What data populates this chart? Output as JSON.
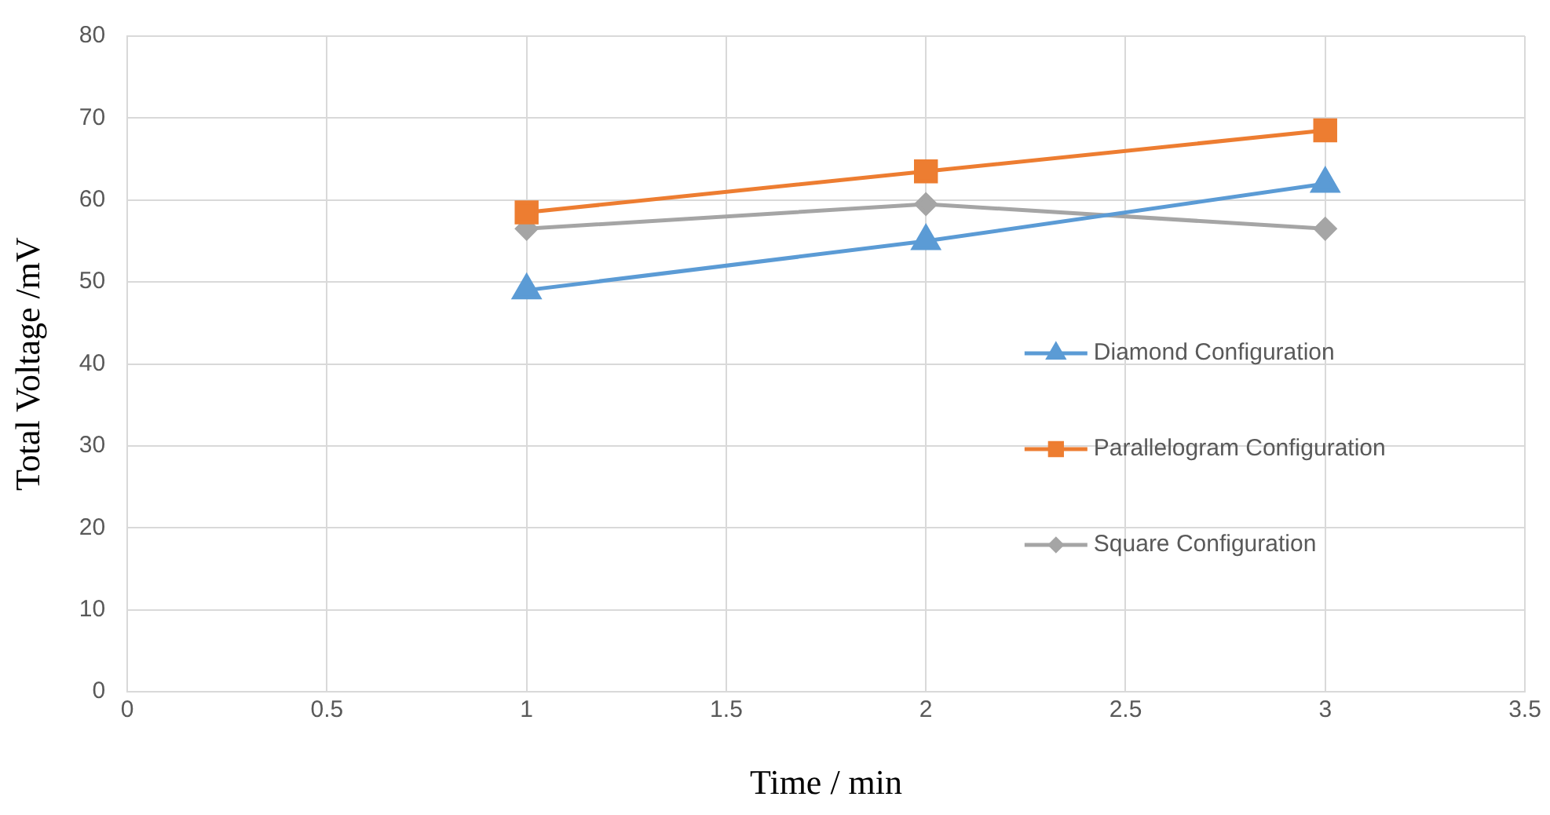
{
  "chart_data": {
    "type": "line",
    "xlabel": "Time / min",
    "ylabel": "Total Voltage /mV",
    "xlim": [
      0,
      3.5
    ],
    "xticks": [
      0,
      0.5,
      1,
      1.5,
      2,
      2.5,
      3,
      3.5
    ],
    "ylim": [
      0,
      80
    ],
    "yticks": [
      0,
      10,
      20,
      30,
      40,
      50,
      60,
      70,
      80
    ],
    "x": [
      1,
      2,
      3
    ],
    "grid": true,
    "legend": "right",
    "line_style": "solid",
    "series": [
      {
        "name": "Diamond Configuration",
        "color": "#5b9bd5",
        "marker": "triangle",
        "values": [
          49,
          55,
          62
        ]
      },
      {
        "name": "Parallelogram Configuration",
        "color": "#ed7d31",
        "marker": "square",
        "values": [
          58.5,
          63.5,
          68.5
        ]
      },
      {
        "name": "Square Configuration",
        "color": "#a5a5a5",
        "marker": "diamond",
        "values": [
          56.5,
          59.5,
          56.5
        ]
      }
    ]
  }
}
